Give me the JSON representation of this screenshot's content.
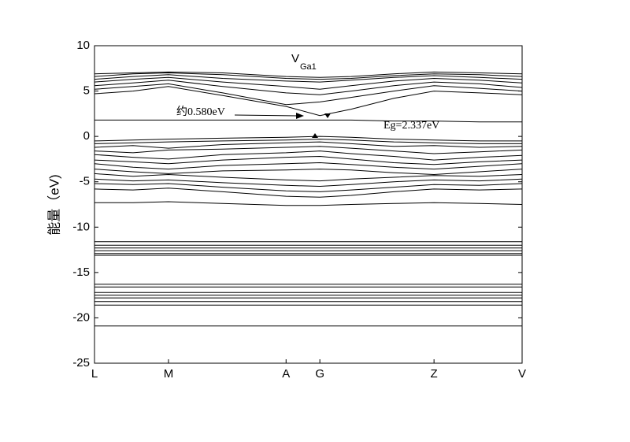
{
  "chart_data": {
    "type": "line",
    "title": "V",
    "title_subscript": "Ga1",
    "y_label": "能量（eV)",
    "annotations": [
      "约0.580eV",
      "Eg=2.337eV"
    ],
    "color": "#000000",
    "x": [
      0,
      0.09,
      0.173,
      0.3,
      0.448,
      0.527,
      0.6,
      0.7,
      0.794,
      0.9,
      1
    ],
    "xlim": [
      0,
      1
    ],
    "xticks": [
      {
        "value": 0,
        "label": "L"
      },
      {
        "value": 0.173,
        "label": "M"
      },
      {
        "value": 0.448,
        "label": "A"
      },
      {
        "value": 0.527,
        "label": "G"
      },
      {
        "value": 0.794,
        "label": "Z"
      },
      {
        "value": 1,
        "label": "V"
      }
    ],
    "ylim": [
      -25,
      10
    ],
    "yticks": [
      -25,
      -20,
      -15,
      -10,
      -5,
      0,
      5,
      10
    ],
    "series": [
      {
        "values": [
          1.8,
          1.8,
          1.8,
          1.8,
          1.8,
          1.8,
          1.8,
          1.7,
          1.7,
          1.6,
          1.6
        ]
      },
      {
        "values": [
          4.7,
          5.0,
          5.5,
          4.5,
          3.3,
          2.3,
          3.0,
          4.2,
          5.0,
          4.8,
          4.6
        ]
      },
      {
        "values": [
          5.2,
          5.5,
          5.8,
          4.8,
          3.5,
          3.8,
          4.3,
          5.0,
          5.6,
          5.3,
          5.0
        ]
      },
      {
        "values": [
          5.6,
          5.9,
          6.2,
          5.5,
          4.8,
          4.6,
          5.0,
          5.6,
          6.0,
          5.8,
          5.4
        ]
      },
      {
        "values": [
          6.0,
          6.3,
          6.5,
          6.0,
          5.5,
          5.2,
          5.6,
          6.1,
          6.4,
          6.2,
          5.9
        ]
      },
      {
        "values": [
          6.3,
          6.6,
          6.8,
          6.4,
          6.1,
          6.0,
          6.2,
          6.5,
          6.7,
          6.5,
          6.3
        ]
      },
      {
        "values": [
          6.6,
          6.9,
          7.0,
          6.8,
          6.4,
          6.3,
          6.4,
          6.7,
          6.9,
          6.8,
          6.6
        ]
      },
      {
        "values": [
          6.9,
          7.0,
          7.1,
          7.0,
          6.6,
          6.5,
          6.6,
          6.9,
          7.1,
          7.0,
          6.9
        ]
      },
      {
        "values": [
          -0.5,
          -0.4,
          -0.3,
          -0.2,
          -0.1,
          0.0,
          -0.1,
          -0.3,
          -0.4,
          -0.5,
          -0.5
        ]
      },
      {
        "values": [
          -0.8,
          -0.7,
          -0.6,
          -0.5,
          -0.4,
          -0.3,
          -0.4,
          -0.6,
          -0.7,
          -0.8,
          -0.8
        ]
      },
      {
        "values": [
          -1.2,
          -1.0,
          -1.3,
          -0.9,
          -0.7,
          -0.6,
          -0.8,
          -1.1,
          -1.0,
          -1.2,
          -1.1
        ]
      },
      {
        "values": [
          -1.6,
          -1.8,
          -1.5,
          -1.4,
          -1.2,
          -1.1,
          -1.3,
          -1.6,
          -1.9,
          -1.7,
          -1.5
        ]
      },
      {
        "values": [
          -2.0,
          -2.3,
          -2.5,
          -2.0,
          -1.8,
          -1.6,
          -1.9,
          -2.2,
          -2.6,
          -2.3,
          -2.1
        ]
      },
      {
        "values": [
          -2.6,
          -2.8,
          -3.0,
          -2.6,
          -2.3,
          -2.2,
          -2.5,
          -2.9,
          -3.1,
          -2.8,
          -2.6
        ]
      },
      {
        "values": [
          -3.0,
          -3.4,
          -3.6,
          -3.2,
          -3.0,
          -2.9,
          -3.1,
          -3.4,
          -3.6,
          -3.3,
          -3.0
        ]
      },
      {
        "values": [
          -3.6,
          -3.9,
          -4.1,
          -3.8,
          -3.7,
          -3.6,
          -3.7,
          -4.0,
          -4.2,
          -3.9,
          -3.6
        ]
      },
      {
        "values": [
          -4.1,
          -4.4,
          -4.2,
          -4.5,
          -4.8,
          -4.9,
          -4.7,
          -4.5,
          -4.3,
          -4.4,
          -4.2
        ]
      },
      {
        "values": [
          -4.7,
          -4.9,
          -4.8,
          -5.1,
          -5.4,
          -5.5,
          -5.3,
          -5.0,
          -4.8,
          -4.9,
          -4.7
        ]
      },
      {
        "values": [
          -5.2,
          -5.3,
          -5.2,
          -5.6,
          -6.0,
          -6.1,
          -5.9,
          -5.6,
          -5.3,
          -5.4,
          -5.2
        ]
      },
      {
        "values": [
          -5.8,
          -5.9,
          -5.7,
          -6.1,
          -6.6,
          -6.7,
          -6.5,
          -6.1,
          -5.8,
          -5.9,
          -5.8
        ]
      },
      {
        "values": [
          -7.3,
          -7.3,
          -7.2,
          -7.4,
          -7.6,
          -7.6,
          -7.5,
          -7.4,
          -7.3,
          -7.4,
          -7.5
        ]
      },
      {
        "values": [
          -11.6,
          -11.6,
          -11.6,
          -11.6,
          -11.6,
          -11.6,
          -11.6,
          -11.6,
          -11.6,
          -11.6,
          -11.6
        ]
      },
      {
        "values": [
          -12.0,
          -12.0,
          -12.0,
          -12.0,
          -12.0,
          -12.0,
          -12.0,
          -12.0,
          -12.0,
          -12.0,
          -12.0
        ]
      },
      {
        "values": [
          -12.3,
          -12.3,
          -12.3,
          -12.3,
          -12.3,
          -12.3,
          -12.3,
          -12.3,
          -12.3,
          -12.3,
          -12.3
        ]
      },
      {
        "values": [
          -12.6,
          -12.6,
          -12.6,
          -12.6,
          -12.6,
          -12.6,
          -12.6,
          -12.6,
          -12.6,
          -12.6,
          -12.6
        ]
      },
      {
        "values": [
          -12.9,
          -12.9,
          -12.9,
          -12.9,
          -12.9,
          -12.9,
          -12.9,
          -12.9,
          -12.9,
          -12.9,
          -12.9
        ]
      },
      {
        "values": [
          -13.1,
          -13.1,
          -13.1,
          -13.1,
          -13.1,
          -13.1,
          -13.1,
          -13.1,
          -13.1,
          -13.1,
          -13.1
        ]
      },
      {
        "values": [
          -16.3,
          -16.3,
          -16.3,
          -16.3,
          -16.3,
          -16.3,
          -16.3,
          -16.3,
          -16.3,
          -16.3,
          -16.3
        ]
      },
      {
        "values": [
          -16.6,
          -16.6,
          -16.6,
          -16.6,
          -16.6,
          -16.6,
          -16.6,
          -16.6,
          -16.6,
          -16.6,
          -16.6
        ]
      },
      {
        "values": [
          -17.2,
          -17.2,
          -17.2,
          -17.2,
          -17.2,
          -17.2,
          -17.2,
          -17.2,
          -17.2,
          -17.2,
          -17.2
        ]
      },
      {
        "values": [
          -17.5,
          -17.5,
          -17.5,
          -17.5,
          -17.5,
          -17.5,
          -17.5,
          -17.5,
          -17.5,
          -17.5,
          -17.5
        ]
      },
      {
        "values": [
          -17.8,
          -17.8,
          -17.8,
          -17.8,
          -17.8,
          -17.8,
          -17.8,
          -17.8,
          -17.8,
          -17.8,
          -17.8
        ]
      },
      {
        "values": [
          -18.2,
          -18.2,
          -18.2,
          -18.2,
          -18.2,
          -18.2,
          -18.2,
          -18.2,
          -18.2,
          -18.2,
          -18.2
        ]
      },
      {
        "values": [
          -18.6,
          -18.6,
          -18.6,
          -18.6,
          -18.6,
          -18.6,
          -18.6,
          -18.6,
          -18.6,
          -18.6,
          -18.6
        ]
      },
      {
        "values": [
          -20.9,
          -20.9,
          -20.9,
          -20.9,
          -20.9,
          -20.9,
          -20.9,
          -20.9,
          -20.9,
          -20.9,
          -20.9
        ]
      }
    ]
  }
}
